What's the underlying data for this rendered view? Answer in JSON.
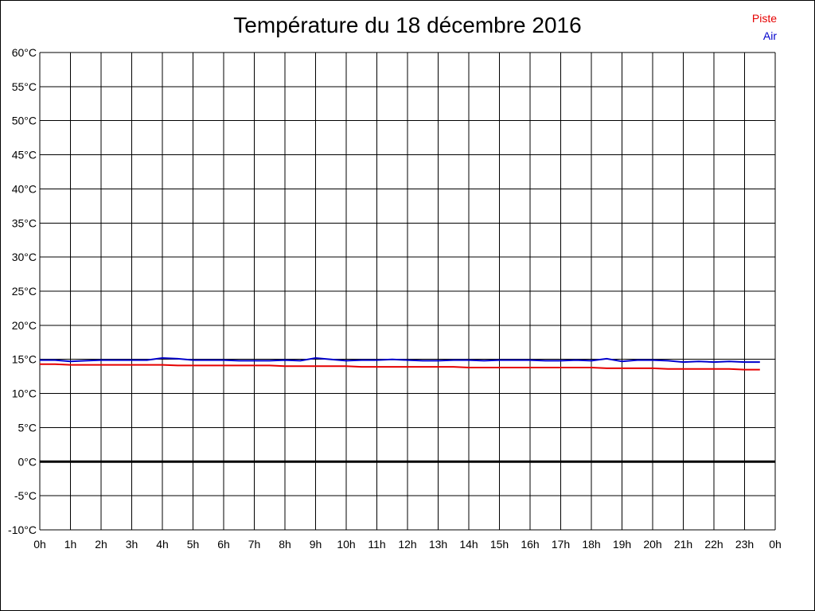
{
  "chart_data": {
    "type": "line",
    "title": "Température du 18 décembre 2016",
    "xlabel": "",
    "ylabel": "",
    "x_ticks": [
      "0h",
      "1h",
      "2h",
      "3h",
      "4h",
      "5h",
      "6h",
      "7h",
      "8h",
      "9h",
      "10h",
      "11h",
      "12h",
      "13h",
      "14h",
      "15h",
      "16h",
      "17h",
      "18h",
      "19h",
      "20h",
      "21h",
      "22h",
      "23h",
      "0h"
    ],
    "y_ticks": [
      "60°C",
      "55°C",
      "50°C",
      "45°C",
      "40°C",
      "35°C",
      "30°C",
      "25°C",
      "20°C",
      "15°C",
      "10°C",
      "5°C",
      "0°C",
      "-5°C",
      "-10°C"
    ],
    "xlim": [
      0,
      24
    ],
    "ylim": [
      -10,
      60
    ],
    "grid": true,
    "legend_position": "top-right",
    "zero_line": 0,
    "series": [
      {
        "name": "Piste",
        "color": "#e60000",
        "x": [
          0,
          0.5,
          1,
          1.5,
          2,
          2.5,
          3,
          3.5,
          4,
          4.5,
          5,
          5.5,
          6,
          6.5,
          7,
          7.5,
          8,
          8.5,
          9,
          9.5,
          10,
          10.5,
          11,
          11.5,
          12,
          12.5,
          13,
          13.5,
          14,
          14.5,
          15,
          15.5,
          16,
          16.5,
          17,
          17.5,
          18,
          18.5,
          19,
          19.5,
          20,
          20.5,
          21,
          21.5,
          22,
          22.5,
          23,
          23.5
        ],
        "values": [
          14.3,
          14.3,
          14.2,
          14.2,
          14.2,
          14.2,
          14.2,
          14.2,
          14.2,
          14.1,
          14.1,
          14.1,
          14.1,
          14.1,
          14.1,
          14.1,
          14.0,
          14.0,
          14.0,
          14.0,
          14.0,
          13.9,
          13.9,
          13.9,
          13.9,
          13.9,
          13.9,
          13.9,
          13.8,
          13.8,
          13.8,
          13.8,
          13.8,
          13.8,
          13.8,
          13.8,
          13.8,
          13.7,
          13.7,
          13.7,
          13.7,
          13.6,
          13.6,
          13.6,
          13.6,
          13.6,
          13.5,
          13.5
        ]
      },
      {
        "name": "Air",
        "color": "#0000cc",
        "x": [
          0,
          0.5,
          1,
          1.5,
          2,
          2.5,
          3,
          3.5,
          4,
          4.5,
          5,
          5.5,
          6,
          6.5,
          7,
          7.5,
          8,
          8.5,
          9,
          9.5,
          10,
          10.5,
          11,
          11.5,
          12,
          12.5,
          13,
          13.5,
          14,
          14.5,
          15,
          15.5,
          16,
          16.5,
          17,
          17.5,
          18,
          18.5,
          19,
          19.5,
          20,
          20.5,
          21,
          21.5,
          22,
          22.5,
          23,
          23.5
        ],
        "values": [
          14.9,
          14.9,
          14.7,
          14.8,
          14.9,
          14.9,
          14.9,
          14.9,
          15.2,
          15.1,
          14.9,
          14.9,
          14.9,
          14.8,
          14.8,
          14.8,
          14.9,
          14.8,
          15.2,
          15.0,
          14.8,
          14.9,
          14.9,
          15.0,
          14.9,
          14.8,
          14.8,
          14.9,
          14.9,
          14.8,
          14.9,
          14.9,
          14.9,
          14.8,
          14.8,
          14.9,
          14.8,
          15.1,
          14.7,
          14.9,
          14.9,
          14.8,
          14.6,
          14.7,
          14.6,
          14.7,
          14.6,
          14.6
        ]
      }
    ]
  }
}
